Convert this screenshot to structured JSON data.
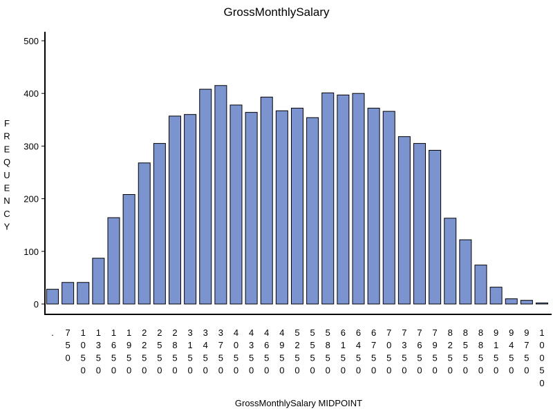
{
  "chart_data": {
    "type": "bar",
    "title": "GrossMonthlySalary",
    "xlabel": "GrossMonthlySalary  MIDPOINT",
    "ylabel": "FREQUENCY",
    "ylim": [
      0,
      500
    ],
    "yticks": [
      "0",
      "100",
      "200",
      "300",
      "400",
      "500"
    ],
    "categories": [
      ".",
      "750",
      "1050",
      "1350",
      "1650",
      "1950",
      "2250",
      "2550",
      "2850",
      "3150",
      "3450",
      "3750",
      "4050",
      "4350",
      "4650",
      "4950",
      "5250",
      "5550",
      "5850",
      "6150",
      "6450",
      "6750",
      "7050",
      "7350",
      "7650",
      "7950",
      "8250",
      "8550",
      "8850",
      "9150",
      "9450",
      "9750",
      "10050"
    ],
    "values": [
      28,
      41,
      41,
      87,
      164,
      208,
      268,
      305,
      357,
      360,
      408,
      415,
      378,
      364,
      393,
      367,
      372,
      354,
      401,
      397,
      400,
      372,
      366,
      318,
      305,
      292,
      163,
      122,
      74,
      32,
      10,
      7,
      2
    ],
    "bar_color": "#7b93cf",
    "grid": false,
    "legend": "none"
  }
}
